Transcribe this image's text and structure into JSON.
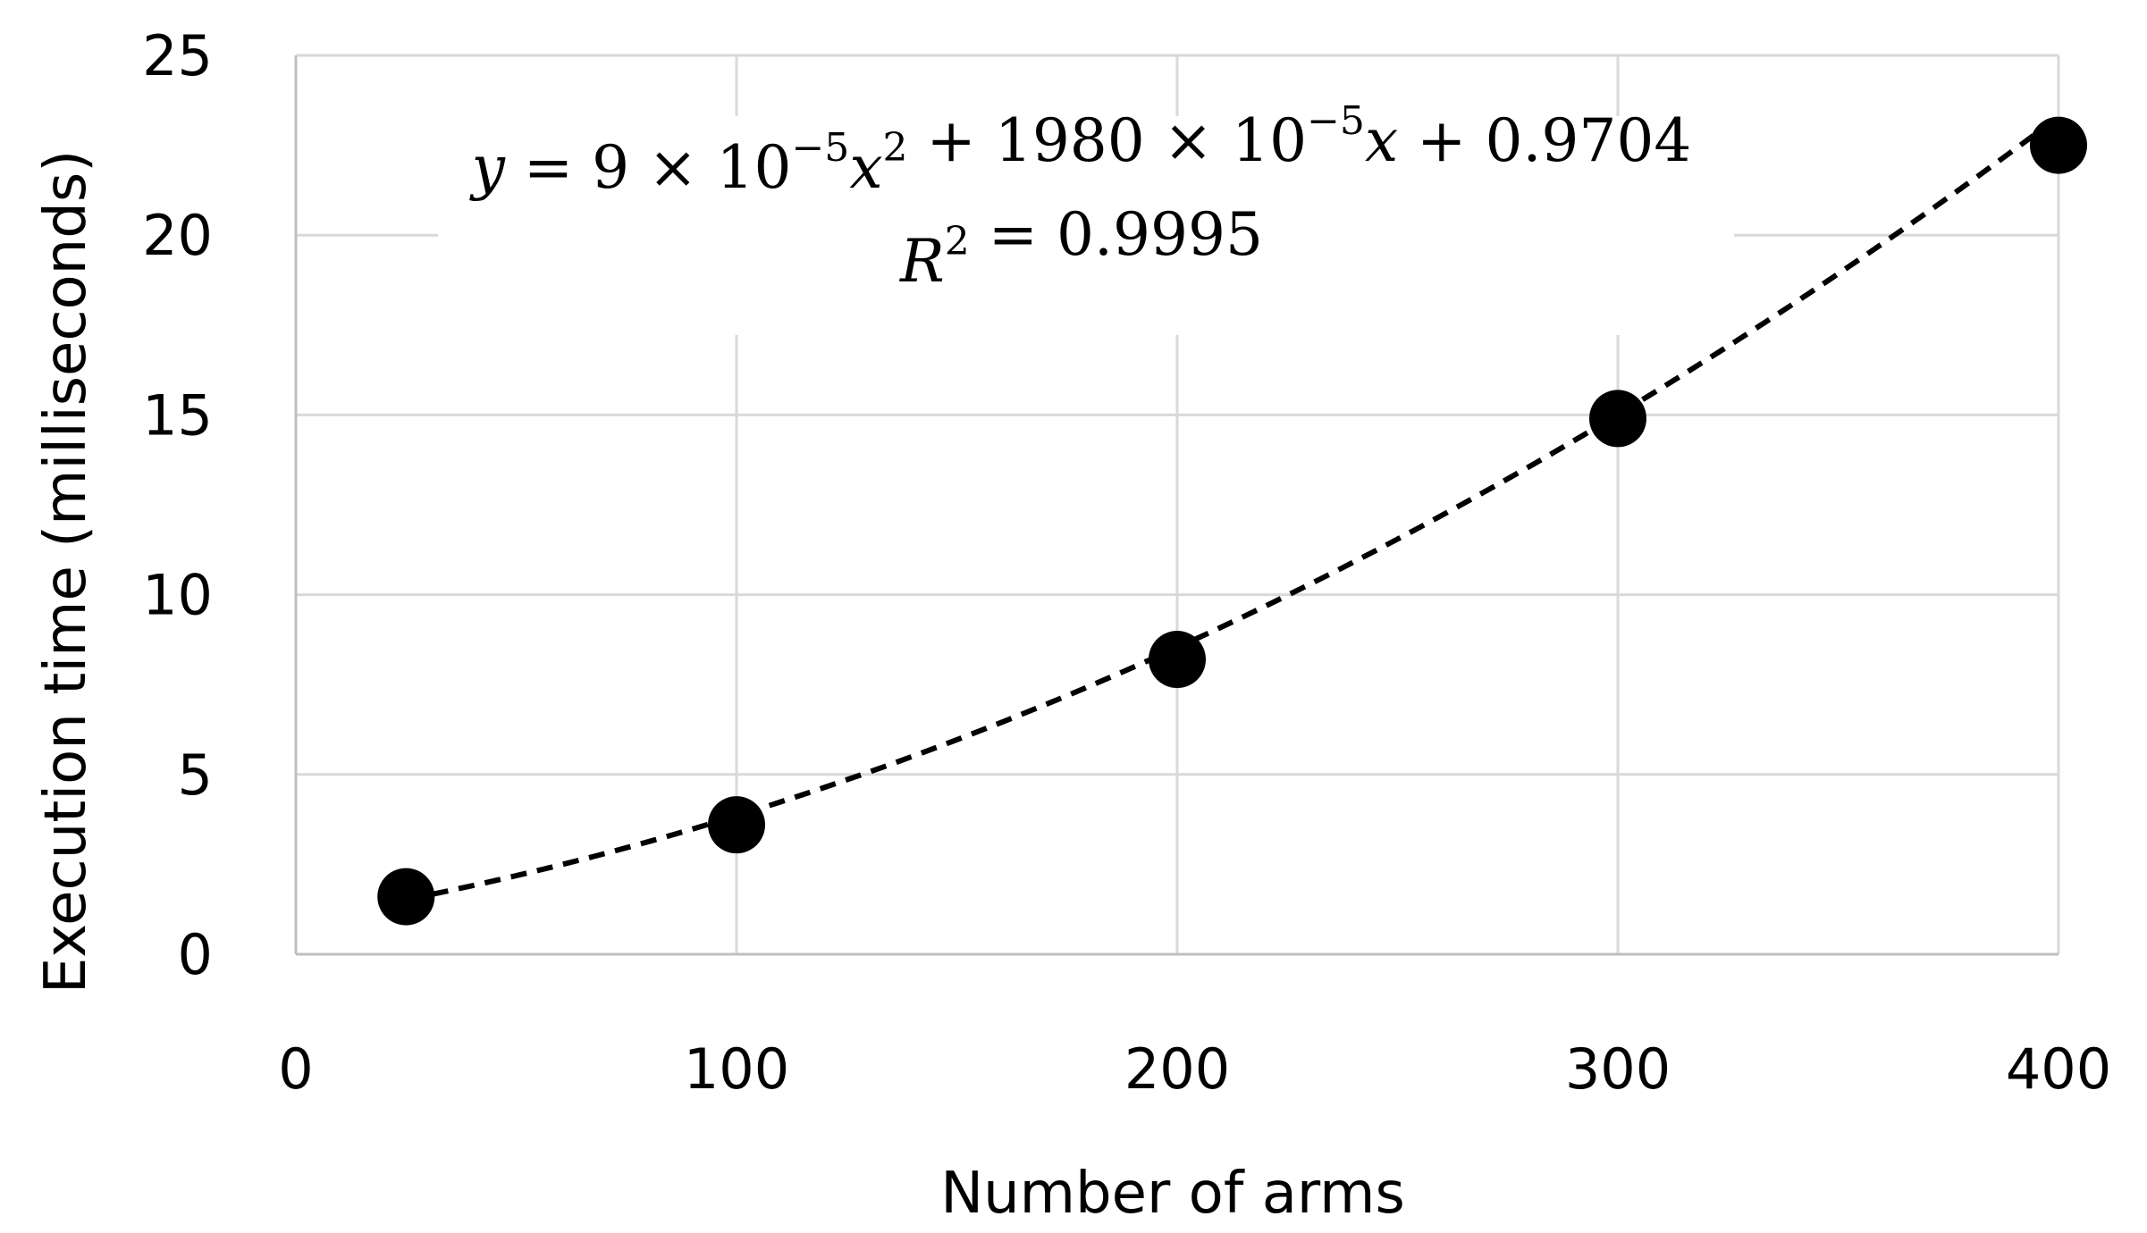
{
  "chart_data": {
    "type": "scatter",
    "xlabel": "Number of arms",
    "ylabel": "Execution time (milliseconds)",
    "xlim": [
      0,
      400
    ],
    "ylim": [
      0,
      25
    ],
    "x_ticks": [
      "0",
      "100",
      "200",
      "300",
      "400"
    ],
    "y_ticks": [
      "0",
      "5",
      "10",
      "15",
      "20",
      "25"
    ],
    "grid": true,
    "series": [
      {
        "x": [
          25,
          100,
          200,
          300,
          400
        ],
        "y": [
          1.6,
          3.6,
          8.2,
          14.9,
          22.5
        ]
      }
    ],
    "trendline": {
      "type": "polynomial",
      "order": 2,
      "style": "dashed",
      "coefficients": {
        "a": 9e-05,
        "b": 0.0198,
        "c": 0.9704
      },
      "equation": {
        "y": "y",
        "eq": "=",
        "a_mant": "9",
        "times1": "×",
        "a_base": "10",
        "a_exp": "−5",
        "x1": "x",
        "x1_exp": "2",
        "plus1": "+",
        "b_mant": "1980",
        "times2": "×",
        "b_base": "10",
        "b_exp": "−5",
        "x2": "x",
        "plus2": "+",
        "c": "0.9704"
      },
      "r2": {
        "R": "R",
        "R_exp": "2",
        "eq": "=",
        "value": "0.9995"
      }
    },
    "colors": {
      "marker": "#000000",
      "line": "#000000",
      "grid": "#d9d9d9",
      "axis": "#bfbfbf"
    }
  }
}
